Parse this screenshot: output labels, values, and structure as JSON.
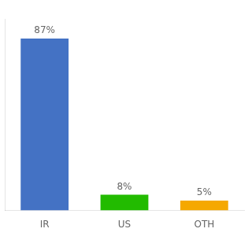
{
  "chart_data": {
    "type": "bar",
    "categories": [
      "IR",
      "US",
      "OTH"
    ],
    "values": [
      87,
      8,
      5
    ],
    "value_labels": [
      "87%",
      "8%",
      "5%"
    ],
    "data_labels": true,
    "colors": [
      "#4472c4",
      "#22bb00",
      "#f5a800"
    ],
    "ylim": [
      0,
      97
    ],
    "grid": false,
    "tick_labels": "x"
  }
}
